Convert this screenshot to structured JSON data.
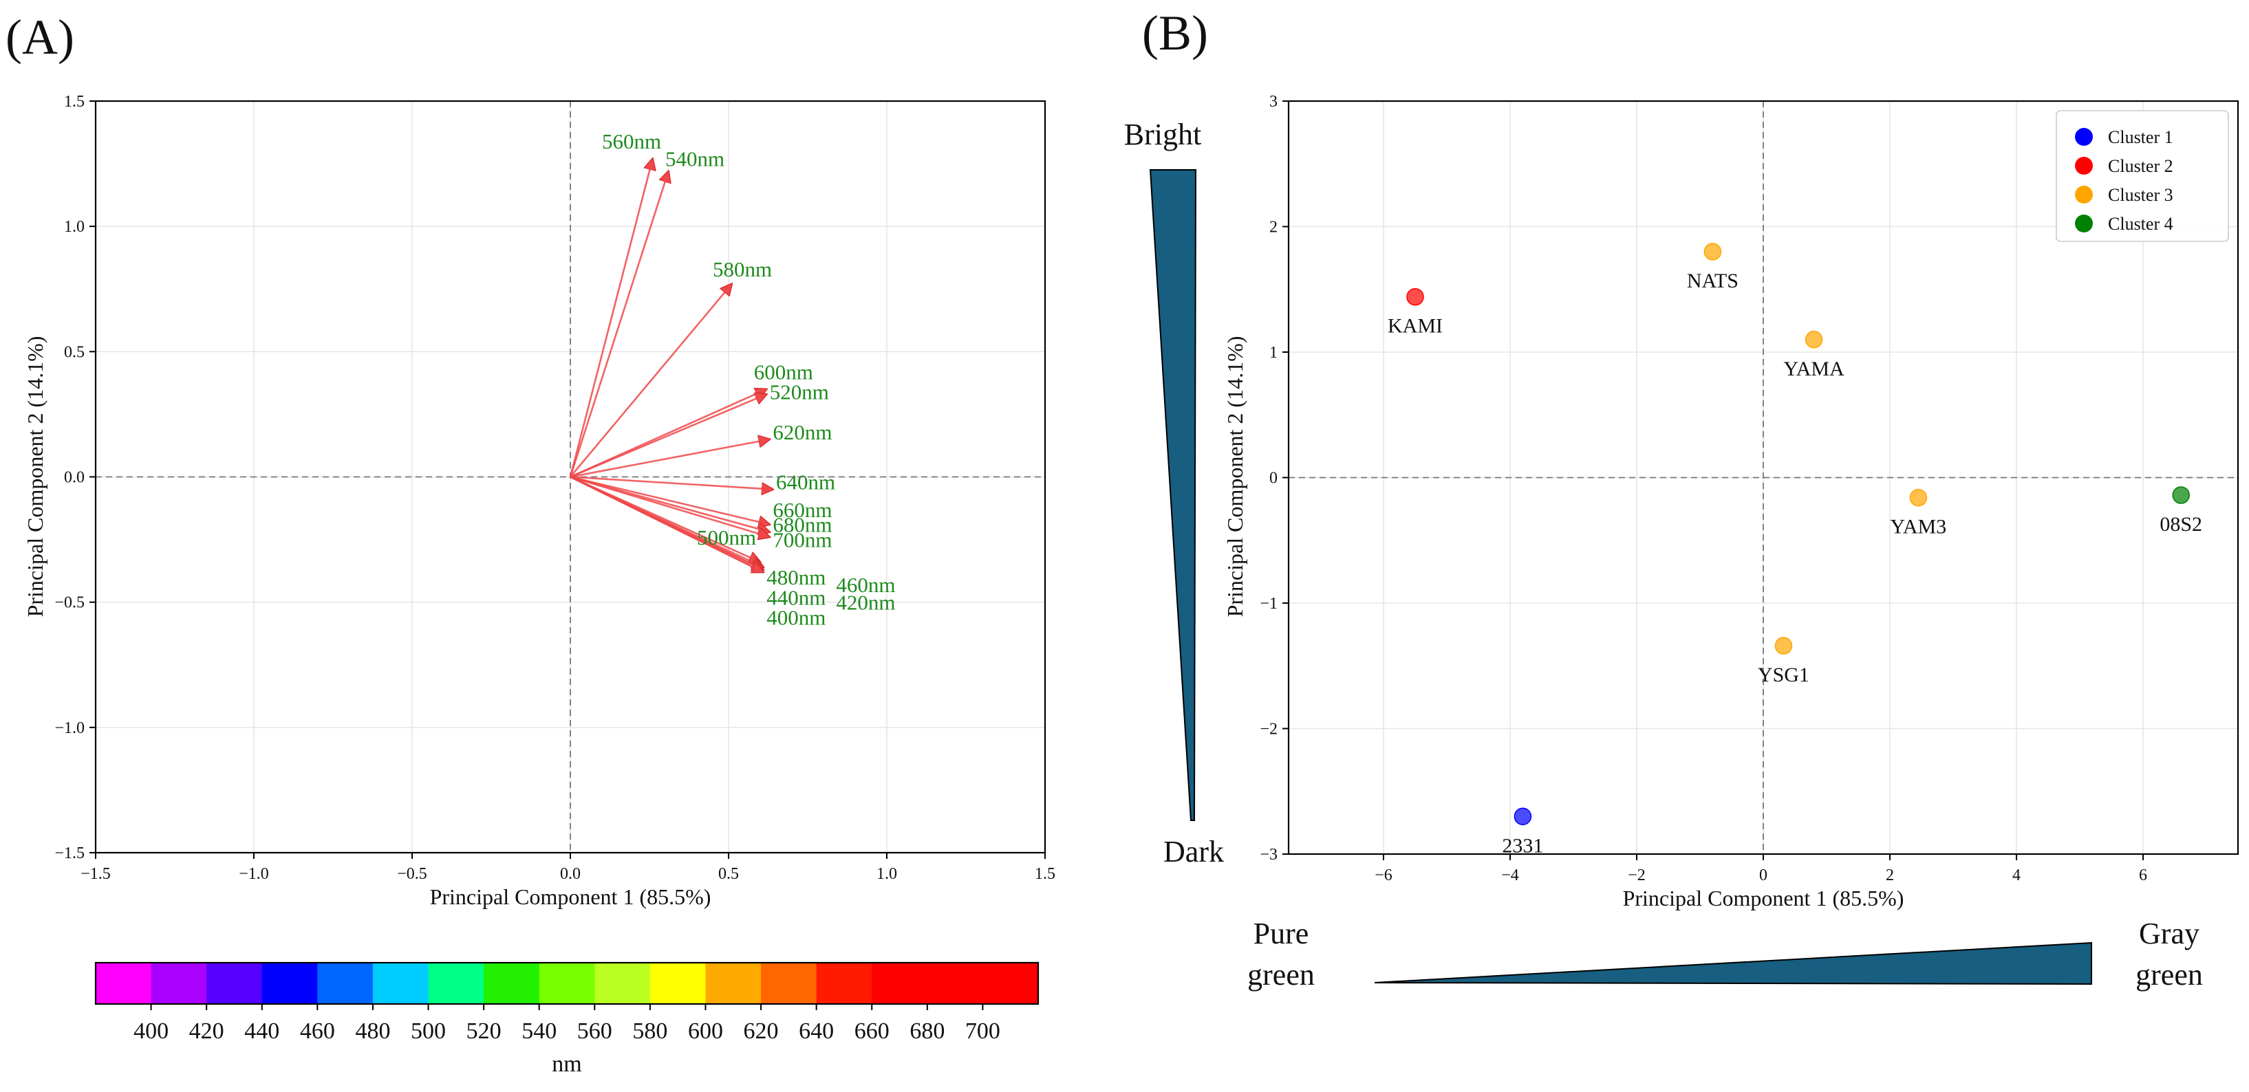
{
  "panels": {
    "a_label": "(A)",
    "b_label": "(B)"
  },
  "annotations": {
    "bright": "Bright",
    "dark": "Dark",
    "pure_green": [
      "Pure",
      "green"
    ],
    "gray_green": [
      "Gray",
      "green"
    ],
    "wedge_color": "#175e80"
  },
  "colorbar": {
    "colors": [
      "#ff00ff",
      "#aa00ff",
      "#5500ff",
      "#0000ff",
      "#0066ff",
      "#00ccff",
      "#00ff88",
      "#22ee00",
      "#77ff00",
      "#bbff22",
      "#ffff00",
      "#ffaa00",
      "#ff6600",
      "#ff1a00",
      "#ff0000",
      "#ff0000",
      "#ff0000"
    ],
    "ticks": [
      "400",
      "420",
      "440",
      "460",
      "480",
      "500",
      "520",
      "540",
      "560",
      "580",
      "600",
      "620",
      "640",
      "660",
      "680",
      "700"
    ],
    "label": "nm"
  },
  "chart_data": [
    {
      "type": "scatter",
      "subtype": "loading-biplot",
      "xlabel": "Principal Component 1 (85.5%)",
      "ylabel": "Principal Component 2 (14.1%)",
      "xlim": [
        -1.5,
        1.5
      ],
      "ylim": [
        -1.5,
        1.5
      ],
      "xticks": [
        -1.5,
        -1.0,
        -0.5,
        0.0,
        0.5,
        1.0,
        1.5
      ],
      "xtick_labels": [
        "−1.5",
        "−1.0",
        "−0.5",
        "0.0",
        "0.5",
        "1.0",
        "1.5"
      ],
      "yticks": [
        -1.5,
        -1.0,
        -0.5,
        0.0,
        0.5,
        1.0,
        1.5
      ],
      "ytick_labels": [
        "−1.5",
        "−1.0",
        "−0.5",
        "0.0",
        "0.5",
        "1.0",
        "1.5"
      ],
      "grid": true,
      "arrow_color": "#f0484a",
      "label_color": "#1d8a1d",
      "loadings": [
        {
          "label": "560nm",
          "x": 0.26,
          "y": 1.27,
          "lx": 0.1,
          "ly": 1.31
        },
        {
          "label": "540nm",
          "x": 0.31,
          "y": 1.22,
          "lx": 0.3,
          "ly": 1.24
        },
        {
          "label": "580nm",
          "x": 0.51,
          "y": 0.77,
          "lx": 0.45,
          "ly": 0.8
        },
        {
          "label": "600nm",
          "x": 0.62,
          "y": 0.35,
          "lx": 0.58,
          "ly": 0.39
        },
        {
          "label": "520nm",
          "x": 0.62,
          "y": 0.33,
          "lx": 0.63,
          "ly": 0.31
        },
        {
          "label": "620nm",
          "x": 0.63,
          "y": 0.15,
          "lx": 0.64,
          "ly": 0.15
        },
        {
          "label": "640nm",
          "x": 0.64,
          "y": -0.05,
          "lx": 0.65,
          "ly": -0.05
        },
        {
          "label": "660nm",
          "x": 0.63,
          "y": -0.19,
          "lx": 0.64,
          "ly": -0.16
        },
        {
          "label": "680nm",
          "x": 0.63,
          "y": -0.22,
          "lx": 0.64,
          "ly": -0.22
        },
        {
          "label": "700nm",
          "x": 0.63,
          "y": -0.24,
          "lx": 0.64,
          "ly": -0.28
        },
        {
          "label": "500nm",
          "x": 0.6,
          "y": -0.34,
          "lx": 0.4,
          "ly": -0.27
        },
        {
          "label": "480nm",
          "x": 0.61,
          "y": -0.36,
          "lx": 0.62,
          "ly": -0.43
        },
        {
          "label": "460nm",
          "x": 0.61,
          "y": -0.37,
          "lx": 0.84,
          "ly": -0.46
        },
        {
          "label": "440nm",
          "x": 0.61,
          "y": -0.37,
          "lx": 0.62,
          "ly": -0.51
        },
        {
          "label": "420nm",
          "x": 0.61,
          "y": -0.38,
          "lx": 0.84,
          "ly": -0.53
        },
        {
          "label": "400nm",
          "x": 0.61,
          "y": -0.38,
          "lx": 0.62,
          "ly": -0.59
        }
      ]
    },
    {
      "type": "scatter",
      "xlabel": "Principal Component 1 (85.5%)",
      "ylabel": "Principal Component 2 (14.1%)",
      "xlim": [
        -7.5,
        7.5
      ],
      "ylim": [
        -3,
        3
      ],
      "xticks": [
        -6,
        -4,
        -2,
        0,
        2,
        4,
        6
      ],
      "xtick_labels": [
        "−6",
        "−4",
        "−2",
        "0",
        "2",
        "4",
        "6"
      ],
      "yticks": [
        -3,
        -2,
        -1,
        0,
        1,
        2,
        3
      ],
      "ytick_labels": [
        "−3",
        "−2",
        "−1",
        "0",
        "1",
        "2",
        "3"
      ],
      "grid": true,
      "legend_position": "top-right",
      "legend": [
        {
          "name": "Cluster 1",
          "color": "#0000ff"
        },
        {
          "name": "Cluster 2",
          "color": "#ff0000"
        },
        {
          "name": "Cluster 3",
          "color": "#ffa500"
        },
        {
          "name": "Cluster 4",
          "color": "#008000"
        }
      ],
      "points": [
        {
          "label": "KAMI",
          "x": -5.5,
          "y": 1.44,
          "cluster": 2
        },
        {
          "label": "NATS",
          "x": -0.8,
          "y": 1.8,
          "cluster": 3
        },
        {
          "label": "YAMA",
          "x": 0.8,
          "y": 1.1,
          "cluster": 3
        },
        {
          "label": "YAM3",
          "x": 2.45,
          "y": -0.16,
          "cluster": 3
        },
        {
          "label": "08S2",
          "x": 6.6,
          "y": -0.14,
          "cluster": 4
        },
        {
          "label": "YSG1",
          "x": 0.32,
          "y": -1.34,
          "cluster": 3
        },
        {
          "label": "2331",
          "x": -3.8,
          "y": -2.7,
          "cluster": 1
        }
      ]
    }
  ]
}
